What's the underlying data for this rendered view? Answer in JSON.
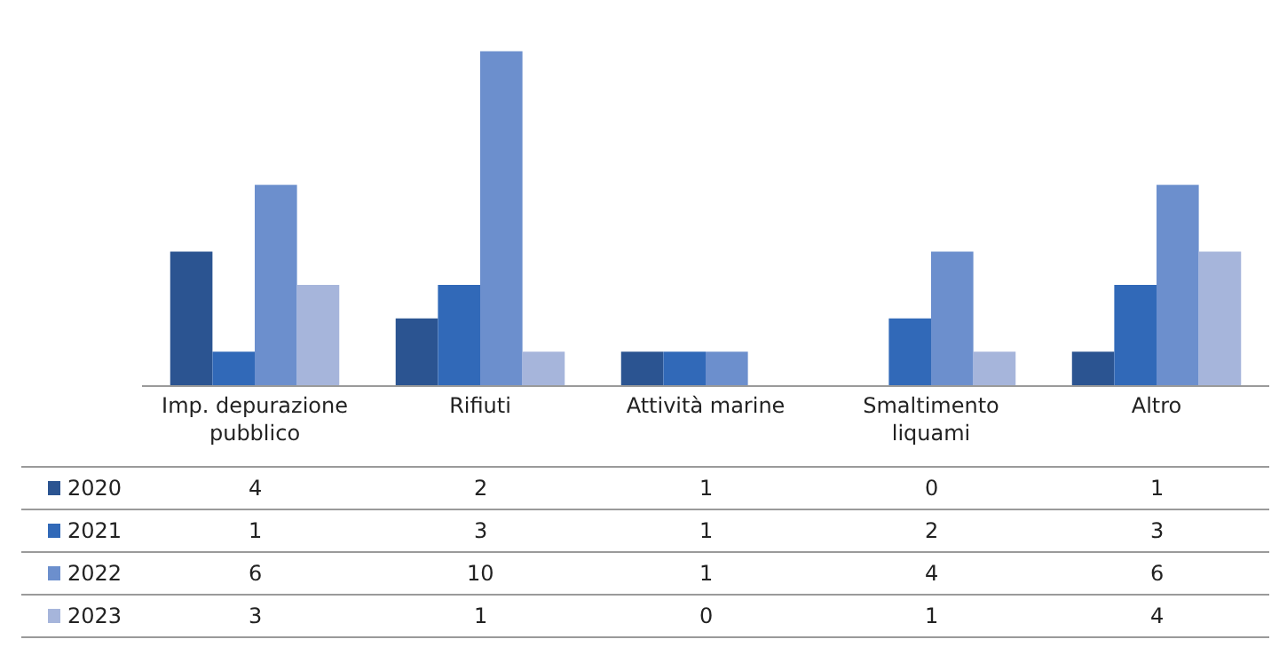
{
  "chart_data": {
    "type": "bar",
    "categories": [
      "Imp. depurazione pubblico",
      "Rifiuti",
      "Attività marine",
      "Smaltimento liquami",
      "Altro"
    ],
    "series": [
      {
        "name": "2020",
        "color": "#2b5491",
        "values": [
          4,
          2,
          1,
          0,
          1
        ]
      },
      {
        "name": "2021",
        "color": "#3169b8",
        "values": [
          1,
          3,
          1,
          2,
          3
        ]
      },
      {
        "name": "2022",
        "color": "#6c8fcd",
        "values": [
          6,
          10,
          1,
          4,
          6
        ]
      },
      {
        "name": "2023",
        "color": "#a6b5db",
        "values": [
          3,
          1,
          0,
          1,
          4
        ]
      }
    ],
    "data_labels": true,
    "legend": "bottom",
    "grid": false
  }
}
